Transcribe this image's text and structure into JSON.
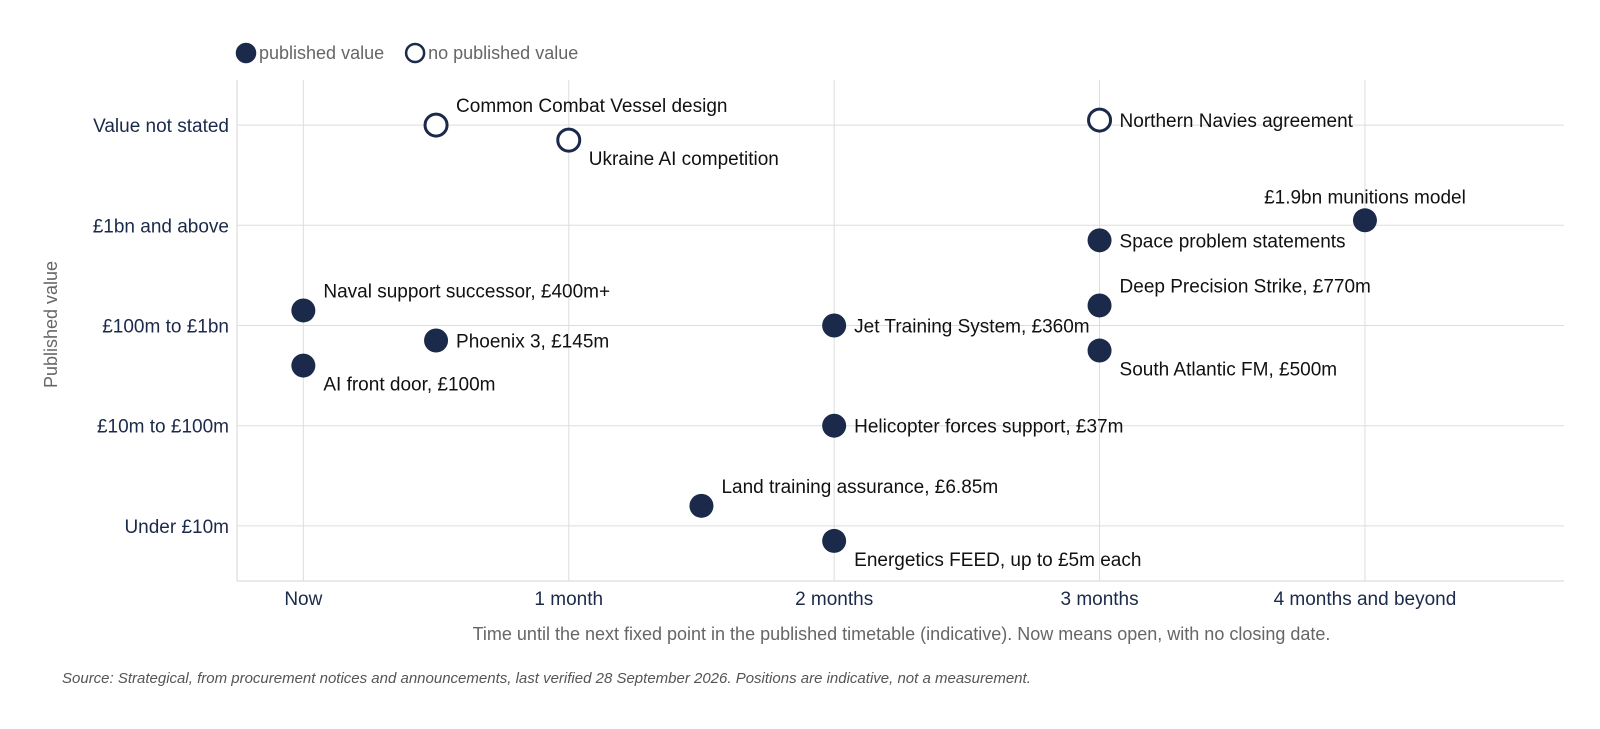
{
  "chart_data": {
    "type": "scatter",
    "title": "",
    "xlabel": "Time until the next fixed point in the published timetable (indicative). Now means open, with no closing date.",
    "ylabel": "Published value",
    "x_categories": [
      "Now",
      "1 month",
      "2 months",
      "3 months",
      "4 months and beyond"
    ],
    "y_categories": [
      "Under £10m",
      "£10m to £100m",
      "£100m to £1bn",
      "£1bn and above",
      "Value not stated"
    ],
    "xlim": [
      -0.25,
      4.75
    ],
    "ylim": [
      -0.55,
      4.45
    ],
    "grid": true,
    "legend": {
      "position": "top-left",
      "entries": [
        {
          "label": "published value",
          "filled": true
        },
        {
          "label": "no published value",
          "filled": false
        }
      ]
    },
    "points": [
      {
        "label": "Common Combat Vessel design",
        "x": 0.5,
        "y": 4.0,
        "filled": false,
        "label_pos": "above-right"
      },
      {
        "label": "Ukraine AI competition",
        "x": 1.0,
        "y": 3.85,
        "filled": false,
        "label_pos": "below-right"
      },
      {
        "label": "Northern Navies agreement",
        "x": 3.0,
        "y": 4.05,
        "filled": false,
        "label_pos": "right"
      },
      {
        "label": "£1.9bn munitions model",
        "x": 4.0,
        "y": 3.05,
        "filled": true,
        "label_pos": "above"
      },
      {
        "label": "Space problem statements",
        "x": 3.0,
        "y": 2.85,
        "filled": true,
        "label_pos": "right"
      },
      {
        "label": "Naval support successor, £400m+",
        "x": 0.0,
        "y": 2.15,
        "filled": true,
        "label_pos": "above-right"
      },
      {
        "label": "Deep Precision Strike, £770m",
        "x": 3.0,
        "y": 2.2,
        "filled": true,
        "label_pos": "above-right"
      },
      {
        "label": "Phoenix 3, £145m",
        "x": 0.5,
        "y": 1.85,
        "filled": true,
        "label_pos": "right"
      },
      {
        "label": "Jet Training System, £360m",
        "x": 2.0,
        "y": 2.0,
        "filled": true,
        "label_pos": "right"
      },
      {
        "label": "South Atlantic FM, £500m",
        "x": 3.0,
        "y": 1.75,
        "filled": true,
        "label_pos": "below-right"
      },
      {
        "label": "AI front door, £100m",
        "x": 0.0,
        "y": 1.6,
        "filled": true,
        "label_pos": "below-right"
      },
      {
        "label": "Helicopter forces support, £37m",
        "x": 2.0,
        "y": 1.0,
        "filled": true,
        "label_pos": "right"
      },
      {
        "label": "Land training assurance, £6.85m",
        "x": 1.5,
        "y": 0.2,
        "filled": true,
        "label_pos": "above-right"
      },
      {
        "label": "Energetics FEED, up to £5m each",
        "x": 2.0,
        "y": -0.15,
        "filled": true,
        "label_pos": "below-right"
      }
    ],
    "colors": {
      "marker": "#1b2a4a",
      "tick_label": "#1b2a4a",
      "axis_title": "#666666",
      "grid": "#dddddd",
      "point_label": "#111111"
    }
  },
  "source_note": "Source: Strategical, from procurement notices and announcements, last verified 28 September 2026. Positions are indicative, not a measurement."
}
